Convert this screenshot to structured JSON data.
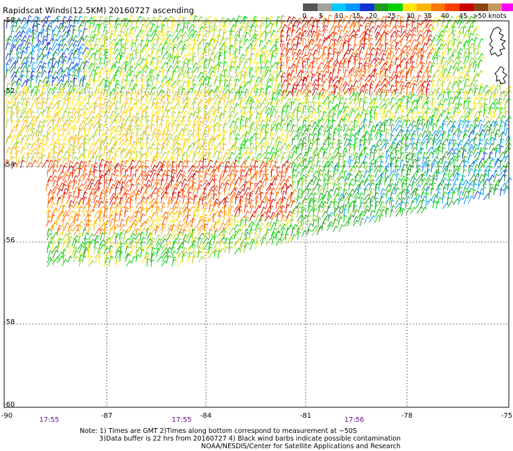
{
  "title": "Rapidscat Winds(12.5KM) 20160727 ascending",
  "colorbar": {
    "colors": [
      "#555555",
      "#a0a0a0",
      "#00c8ff",
      "#0096ff",
      "#1432d2",
      "#1e9b1e",
      "#00d200",
      "#ffe600",
      "#ffb400",
      "#ff7800",
      "#ff3c00",
      "#c80000",
      "#8b4513",
      "#c89664",
      "#ff00ff",
      "#b400ff",
      "#6400c8"
    ],
    "labels": [
      "0",
      "5",
      "10",
      "15",
      "20",
      "25",
      "30",
      "35",
      "40",
      "45",
      ">50 knots"
    ]
  },
  "map": {
    "lat_labels": [
      "-50",
      "-52",
      "-54",
      "-56",
      "-58",
      "-60"
    ],
    "lon_labels": [
      "-90",
      "-87",
      "-84",
      "-81",
      "-78",
      "-75"
    ],
    "lat_range": [
      -60,
      -50
    ],
    "lon_range": [
      -90,
      -75
    ]
  },
  "times": [
    "17:55",
    "17:55",
    "17:56"
  ],
  "notes": [
    "Note: 1) Times are GMT 2)Times along bottom correspond to measurement at ~50S",
    "3)Data buffer is 22 hrs from 20160727 4) Black wind barbs indicate possible contamination"
  ],
  "credit": "NOAA/NESDIS/Center for Satellite Applications and Research"
}
